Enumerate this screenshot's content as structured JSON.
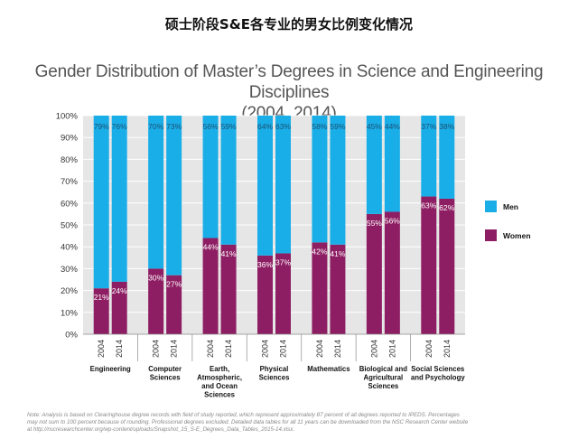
{
  "heading": "硕士阶段S&E各专业的男女比例变化情况",
  "chart_data": {
    "type": "bar",
    "stacked": true,
    "title_line1": "Gender Distribution of Master’s Degrees in Science and Engineering Disciplines",
    "title_line2": "(2004, 2014)",
    "ylim": [
      0,
      100
    ],
    "yticks": [
      "0%",
      "10%",
      "20%",
      "30%",
      "40%",
      "50%",
      "60%",
      "70%",
      "80%",
      "90%",
      "100%"
    ],
    "grid": true,
    "legend_position": "right",
    "groups": [
      {
        "label_lines": [
          "Engineering"
        ],
        "bars": [
          {
            "year": "2004",
            "women": 21,
            "men": 79
          },
          {
            "year": "2014",
            "women": 24,
            "men": 76
          }
        ]
      },
      {
        "label_lines": [
          "Computer",
          "Sciences"
        ],
        "bars": [
          {
            "year": "2004",
            "women": 30,
            "men": 70
          },
          {
            "year": "2014",
            "women": 27,
            "men": 73
          }
        ]
      },
      {
        "label_lines": [
          "Earth,",
          "Atmospheric,",
          "and Ocean",
          "Sciences"
        ],
        "bars": [
          {
            "year": "2004",
            "women": 44,
            "men": 56
          },
          {
            "year": "2014",
            "women": 41,
            "men": 59
          }
        ]
      },
      {
        "label_lines": [
          "Physical",
          "Sciences"
        ],
        "bars": [
          {
            "year": "2004",
            "women": 36,
            "men": 64
          },
          {
            "year": "2014",
            "women": 37,
            "men": 63
          }
        ]
      },
      {
        "label_lines": [
          "Mathematics"
        ],
        "bars": [
          {
            "year": "2004",
            "women": 42,
            "men": 58
          },
          {
            "year": "2014",
            "women": 41,
            "men": 59
          }
        ]
      },
      {
        "label_lines": [
          "Biological and",
          "Agricultural",
          "Sciences"
        ],
        "bars": [
          {
            "year": "2004",
            "women": 55,
            "men": 45
          },
          {
            "year": "2014",
            "women": 56,
            "men": 44
          }
        ]
      },
      {
        "label_lines": [
          "Social Sciences",
          "and Psychology"
        ],
        "bars": [
          {
            "year": "2004",
            "women": 63,
            "men": 37
          },
          {
            "year": "2014",
            "women": 62,
            "men": 38
          }
        ]
      }
    ],
    "series": [
      {
        "name": "Men",
        "key": "men",
        "color": "#1aaee8"
      },
      {
        "name": "Women",
        "key": "women",
        "color": "#8e1e63"
      }
    ],
    "note_lines": [
      "Note: Analysis is based on Clearinghouse degree records with field of study reported, which represent approximately 87 percent of all degrees reported to IPEDS. Percentages",
      "may not sum to 100 percent because of rounding. Professional degrees excluded. Detailed data tables for all 11 years can be downloaded from the NSC Research Center website",
      "at http://nscresearchcenter.org/wp-content/uploads/Snapshot_15_S-E_Degrees_Data_Tables_2015-14.xlsx."
    ]
  }
}
